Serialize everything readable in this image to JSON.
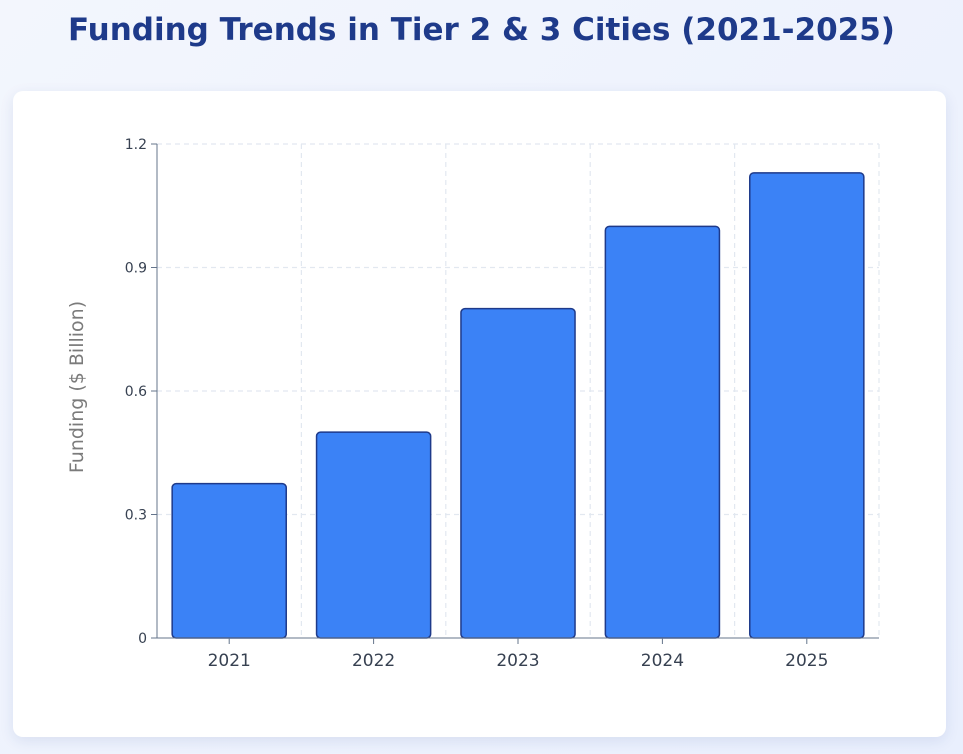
{
  "page": {
    "title": "Funding Trends in Tier 2 & 3 Cities (2021-2025)"
  },
  "chart_data": {
    "type": "bar",
    "title": "Funding Trends in Tier 2 & 3 Cities (2021-2025)",
    "xlabel": "",
    "ylabel": "Funding ($ Billion)",
    "categories": [
      "2021",
      "2022",
      "2023",
      "2024",
      "2025"
    ],
    "values": [
      0.375,
      0.5,
      0.8,
      1.0,
      1.13
    ],
    "ylim": [
      0,
      1.2
    ],
    "yticks": [
      "0",
      "0.3",
      "0.6",
      "0.9",
      "1.2"
    ],
    "grid": true,
    "legend": "none",
    "colors": {
      "bar_fill": "#3b82f6",
      "bar_stroke": "#1e3a8a",
      "title": "#1e3a8a",
      "axis": "#64748b",
      "grid": "#e2e8f0",
      "tick_text": "#374151",
      "ylabel_text": "#7b7b7b"
    }
  }
}
